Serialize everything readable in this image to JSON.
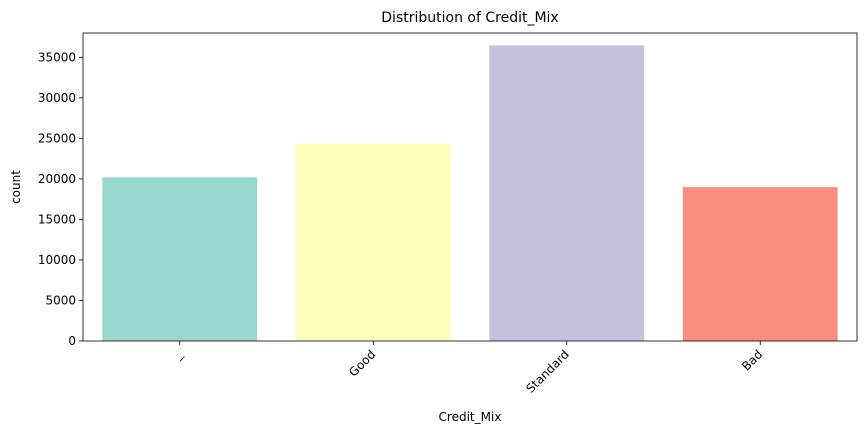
{
  "chart_data": {
    "type": "bar",
    "title": "Distribution of Credit_Mix",
    "xlabel": "Credit_Mix",
    "ylabel": "count",
    "categories": [
      "_",
      "Good",
      "Standard",
      "Bad"
    ],
    "values": [
      20195,
      24337,
      36479,
      18989
    ],
    "colors": [
      "#8dd3c7",
      "#ffffb3",
      "#bebada",
      "#fb8072"
    ],
    "bar_opacity": 0.9,
    "ylim": [
      0,
      38000
    ],
    "yticks": [
      0,
      5000,
      10000,
      15000,
      20000,
      25000,
      30000,
      35000
    ],
    "xtick_rotation_deg": -45,
    "grid": false,
    "legend": "none"
  }
}
